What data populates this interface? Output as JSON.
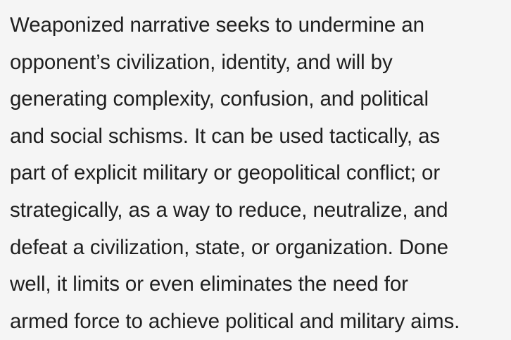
{
  "document": {
    "lines": [
      "Weaponized narrative seeks to undermine an",
      "opponent’s civilization, identity, and will by",
      "generating complexity, confusion, and political",
      "and social schisms. It can be used tactically, as",
      "part of explicit military or geopolitical conflict; or",
      "strategically, as a way to reduce, neutralize, and",
      "defeat a civilization, state, or organization. Done",
      "well, it limits or even eliminates the need for",
      "armed force to achieve political and military aims."
    ]
  },
  "colors": {
    "background": "#f5f5f5",
    "text": "#1f1f1f"
  }
}
